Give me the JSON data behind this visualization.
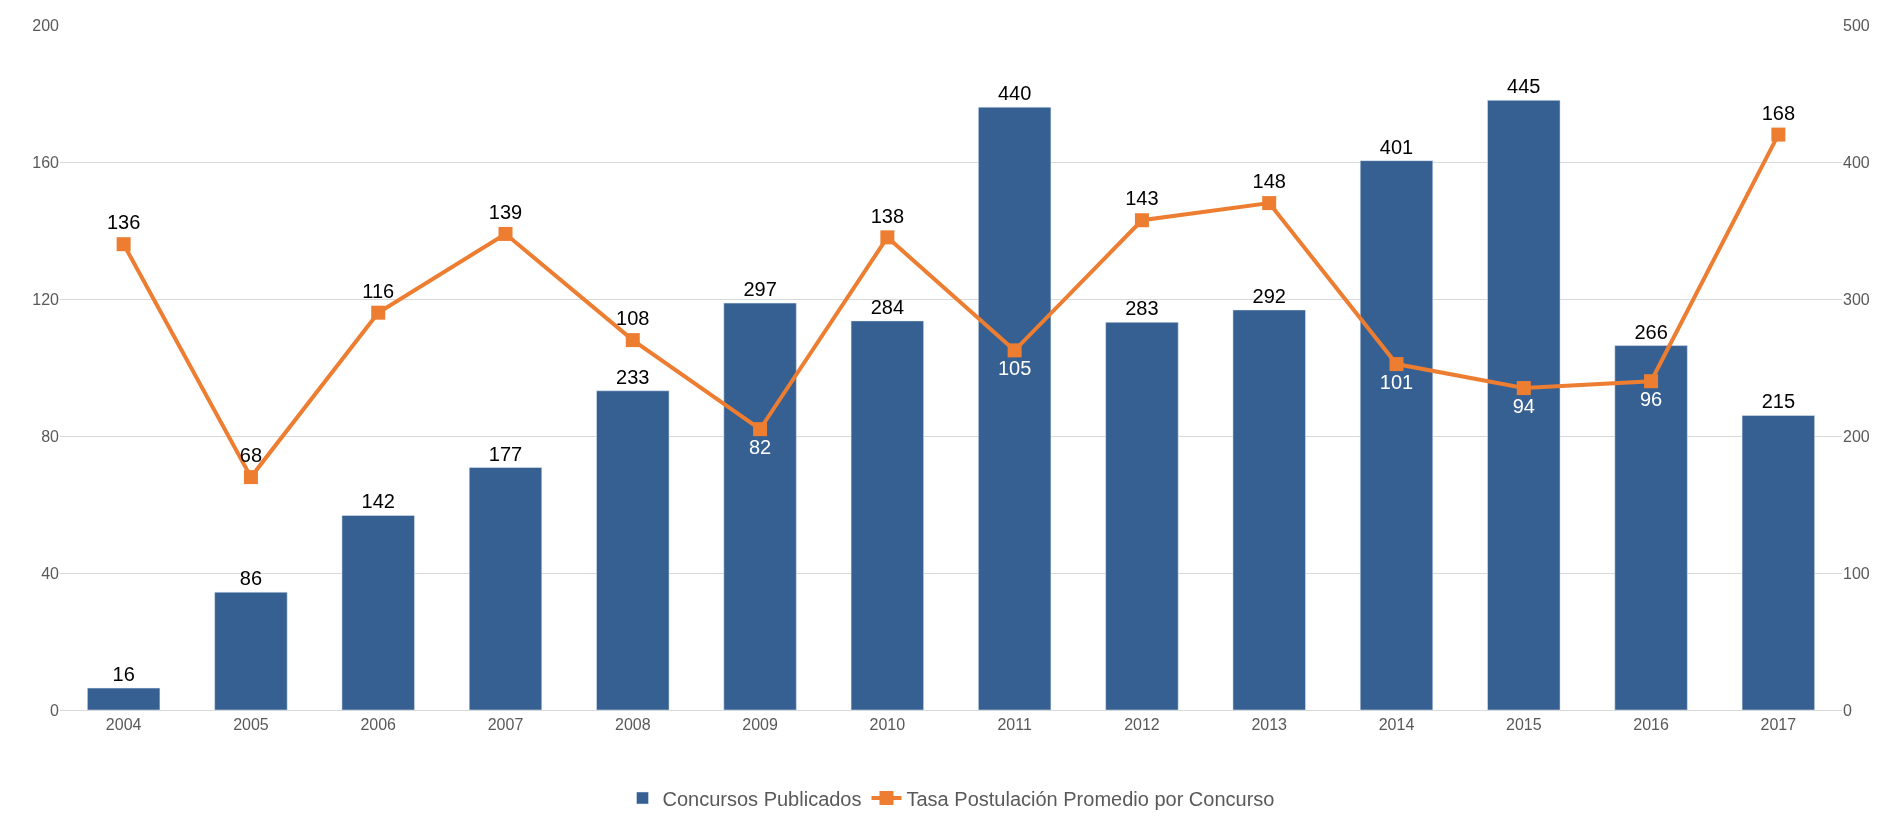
{
  "chart_data": {
    "type": "bar",
    "categories": [
      "2004",
      "2005",
      "2006",
      "2007",
      "2008",
      "2009",
      "2010",
      "2011",
      "2012",
      "2013",
      "2014",
      "2015",
      "2016",
      "2017"
    ],
    "series": [
      {
        "name": "Concursos Publicados",
        "axis": "y2",
        "color": "#366092",
        "values": [
          16,
          86,
          142,
          177,
          233,
          297,
          284,
          440,
          283,
          292,
          401,
          445,
          266,
          215
        ]
      },
      {
        "name": "Tasa Postulación Promedio por Concurso",
        "type": "line",
        "axis": "y",
        "color": "#ed7d31",
        "marker": "square",
        "values": [
          136,
          68,
          116,
          139,
          108,
          82,
          138,
          105,
          143,
          148,
          101,
          94,
          96,
          168
        ]
      }
    ],
    "ylim": [
      0,
      200
    ],
    "yticks": [
      0,
      40,
      80,
      120,
      160,
      200
    ],
    "y2lim": [
      0,
      500
    ],
    "y2ticks": [
      0,
      100,
      200,
      300,
      400,
      500
    ],
    "data_labels": true,
    "grid": "y",
    "legend": "bottom"
  }
}
